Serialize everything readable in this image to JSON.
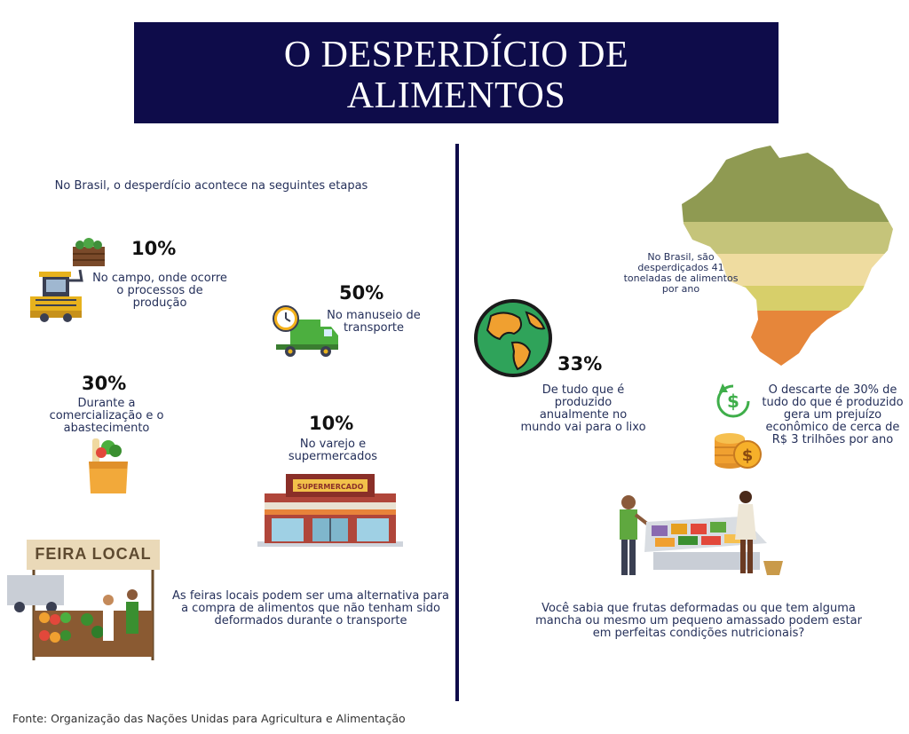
{
  "title": {
    "line1": "O DESPERDÍCIO DE",
    "line2": "ALIMENTOS"
  },
  "left": {
    "intro": "No Brasil, o desperdício acontece na seguintes etapas",
    "stages": [
      {
        "percent": "10%",
        "text": "No campo, onde ocorre o processos de produção",
        "icon": "harvester-icon"
      },
      {
        "percent": "50%",
        "text": "No manuseio de transporte",
        "icon": "delivery-truck-icon"
      },
      {
        "percent": "30%",
        "text": "Durante a comercialização e o abastecimento",
        "icon": "grocery-bag-icon"
      },
      {
        "percent": "10%",
        "text": "No varejo e supermercados",
        "icon": "supermarket-icon"
      }
    ],
    "supermarket_sign": "SUPERMERCADO",
    "market_sign": "FEIRA LOCAL",
    "market_text": "As feiras locais podem ser uma alternativa para a compra de alimentos que não tenham sido deformados durante o transporte"
  },
  "right": {
    "brazil_text": "No Brasil, são desperdiçados 41 toneladas de alimentos por ano",
    "world_percent": "33%",
    "world_text": "De tudo que é produzido anualmente no mundo vai para o lixo",
    "economy_text": "O descarte de 30% de tudo do que é produzido gera um prejuízo econômico de cerca de R$ 3 trilhões por ano",
    "fruit_text": "Você sabia que frutas deformadas ou que tem alguma mancha ou mesmo um pequeno amassado podem estar em perfeitas condições nutricionais?"
  },
  "source": "Fonte: Organização das Nações Unidas para Agricultura e Alimentação"
}
